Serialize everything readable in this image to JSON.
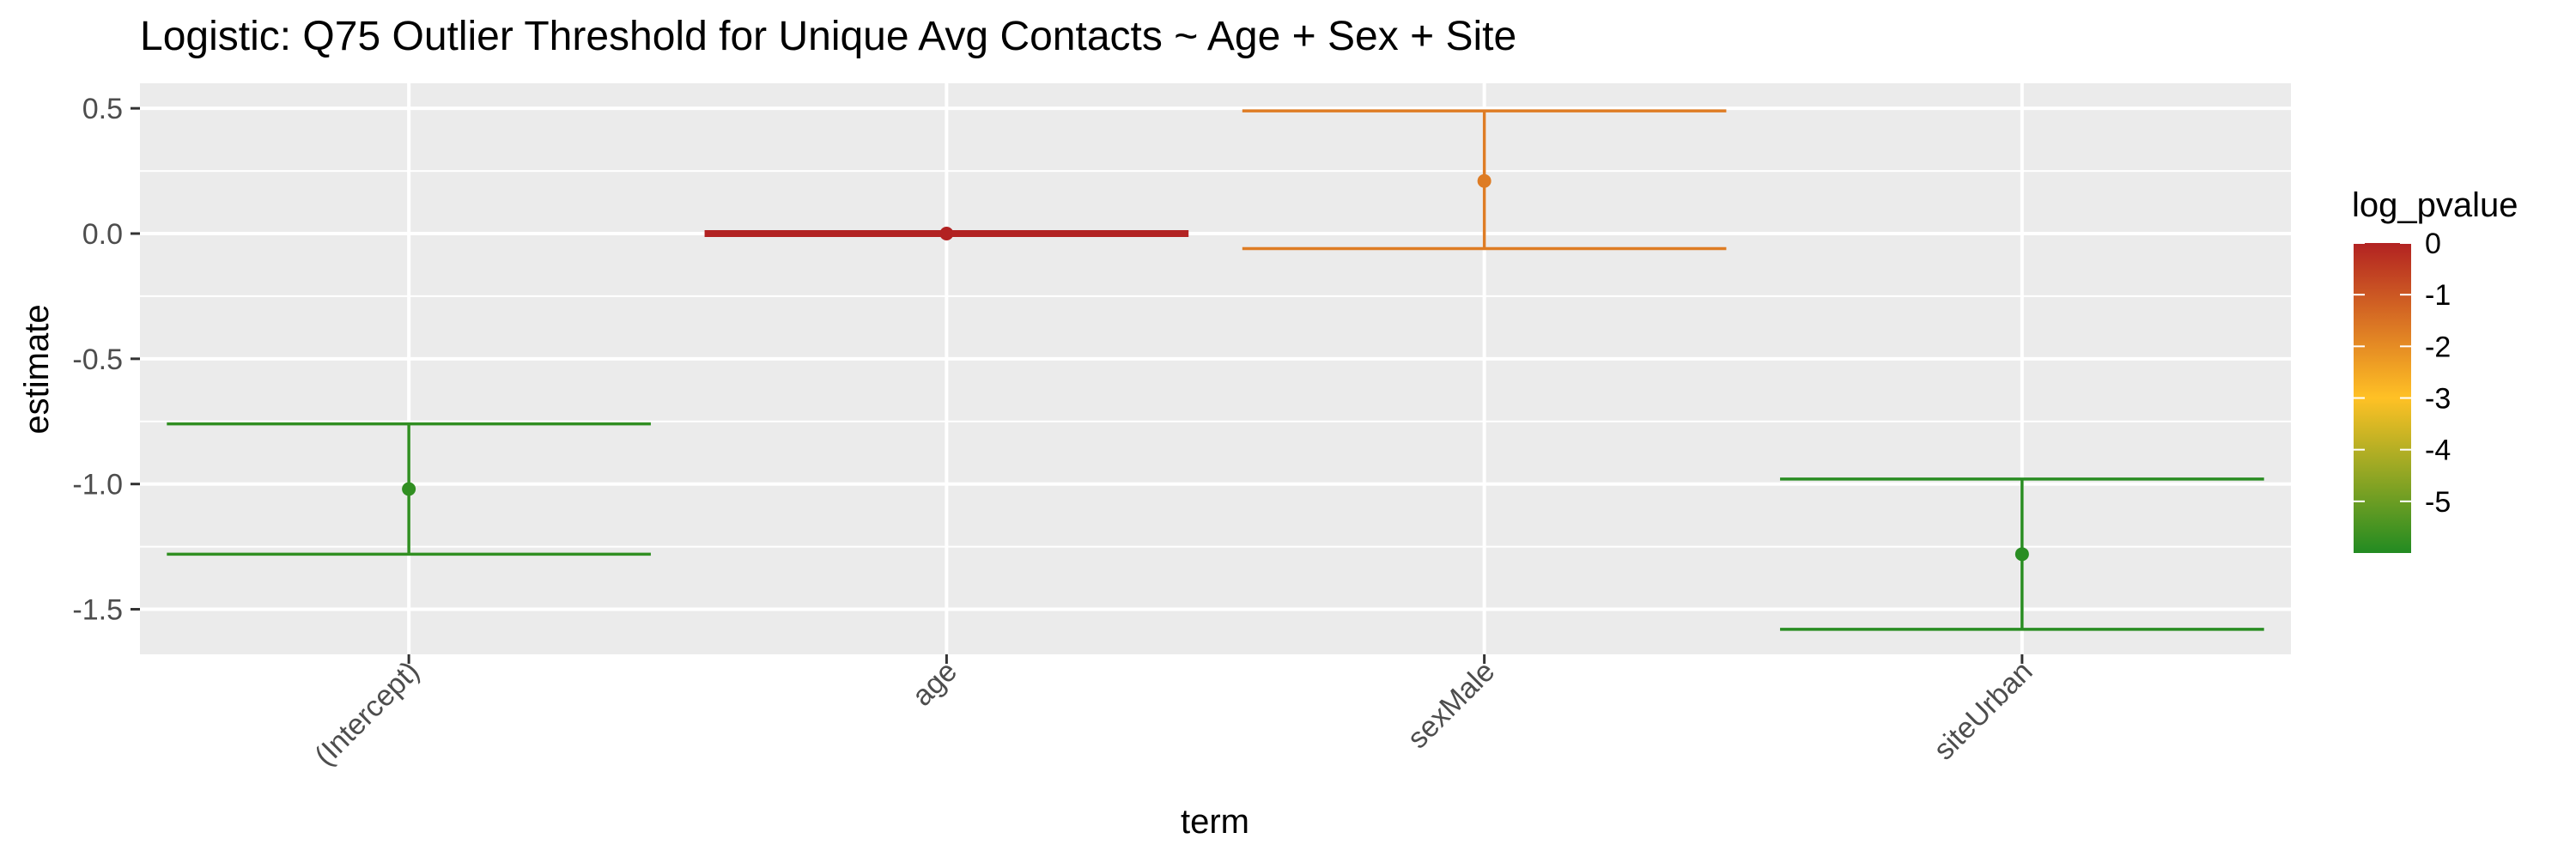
{
  "chart_data": {
    "type": "errorbar",
    "title": "Logistic: Q75 Outlier Threshold for Unique Avg Contacts ~ Age + Sex + Site",
    "xlabel": "term",
    "ylabel": "estimate",
    "categories": [
      "(Intercept)",
      "age",
      "sexMale",
      "siteUrban"
    ],
    "estimates": [
      -1.02,
      0.0,
      0.21,
      -1.28
    ],
    "ci_lower": [
      -1.28,
      -0.002,
      -0.06,
      -1.58
    ],
    "ci_upper": [
      -0.76,
      0.002,
      0.49,
      -0.98
    ],
    "log_pvalue": [
      -5.8,
      0.0,
      -1.7,
      -5.9
    ],
    "ylim": [
      -1.68,
      0.6
    ],
    "yticks": [
      0.5,
      0.0,
      -0.5,
      -1.0,
      -1.5
    ],
    "ytick_labels": [
      "0.5",
      "0.0",
      "-0.5",
      "-1.0",
      "-1.5"
    ],
    "grid": true,
    "legend": {
      "title": "log_pvalue",
      "placement": "right",
      "ticks": [
        0,
        -1,
        -2,
        -3,
        -4,
        -5
      ],
      "tick_labels": [
        "0",
        "-1",
        "-2",
        "-3",
        "-4",
        "-5"
      ],
      "range": [
        -6.0,
        0.0
      ]
    },
    "colors": {
      "panel_bg": "#EBEBEB",
      "grid": "#FFFFFF",
      "gradient": [
        "#228B22",
        "#FFC125",
        "#B22222"
      ]
    }
  }
}
